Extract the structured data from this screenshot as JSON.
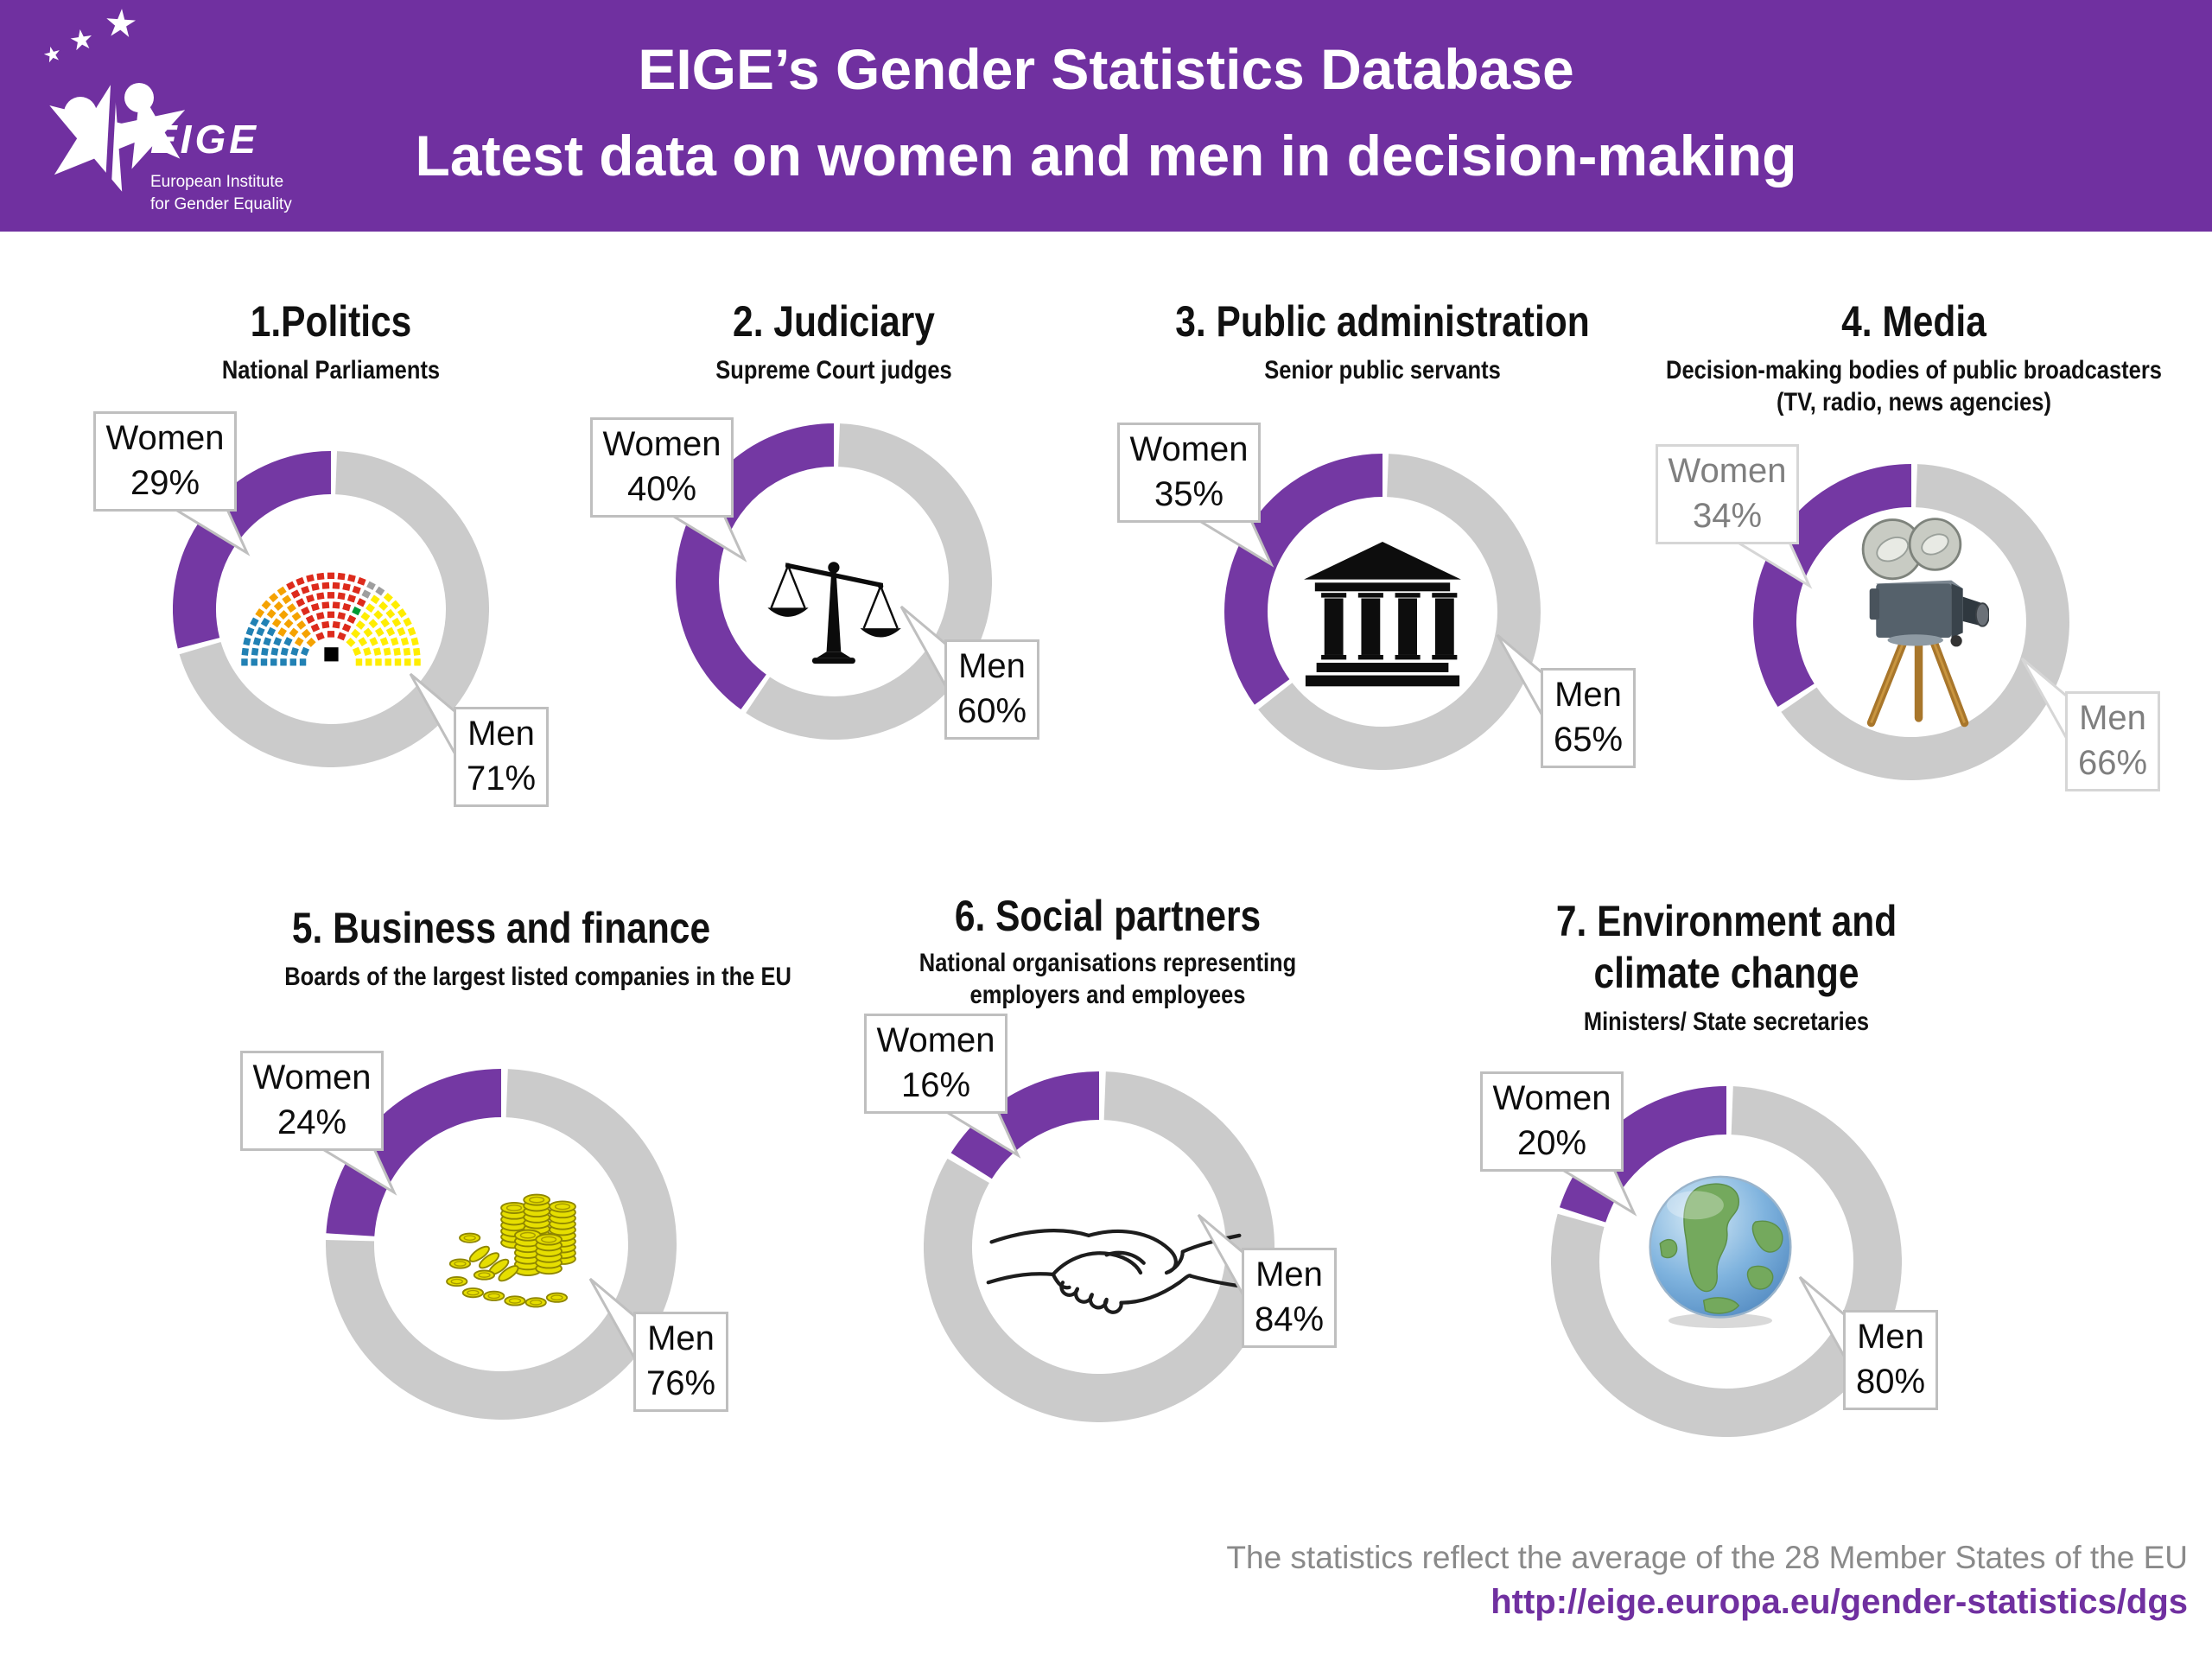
{
  "header": {
    "logo": {
      "acronym": "EIGE",
      "name_line1": "European Institute",
      "name_line2": "for Gender Equality"
    },
    "title_line1": "EIGE’s Gender Statistics Database",
    "title_line2": "Latest data on women and men in decision-making"
  },
  "colors": {
    "header_purple": "#7030A0",
    "donut_women_purple": "#7438A3",
    "donut_men_gray": "#CBCBCB",
    "callout_border_gray": "#BFBFBF",
    "media_callout_border": "#D6D6D6",
    "media_label_gray": "#7F7F7F",
    "footer_note_gray": "#8A8A8A",
    "url_purple": "#7030A0"
  },
  "chart_data": {
    "type": "donut",
    "unit": "%",
    "note": "Each donut shows share of women (purple, counter-clockwise from top) vs men (gray)",
    "charts": [
      {
        "title": "1.Politics",
        "subtitle": "National Parliaments",
        "women_label": "Women",
        "women_pct": 29,
        "women_value": "29%",
        "men_label": "Men",
        "men_pct": 71,
        "men_value": "71%",
        "icon": "parliament-seats-icon"
      },
      {
        "title": "2. Judiciary",
        "subtitle": "Supreme Court judges",
        "women_label": "Women",
        "women_pct": 40,
        "women_value": "40%",
        "men_label": "Men",
        "men_pct": 60,
        "men_value": "60%",
        "icon": "scales-of-justice-icon"
      },
      {
        "title": "3. Public administration",
        "subtitle": "Senior public servants",
        "women_label": "Women",
        "women_pct": 35,
        "women_value": "35%",
        "men_label": "Men",
        "men_pct": 65,
        "men_value": "65%",
        "icon": "government-building-icon"
      },
      {
        "title": "4. Media",
        "subtitle": "Decision-making bodies of public broadcasters (TV, radio, news agencies)",
        "women_label": "Women",
        "women_pct": 34,
        "women_value": "34%",
        "men_label": "Men",
        "men_pct": 66,
        "men_value": "66%",
        "icon": "movie-camera-icon",
        "label_color": "#7F7F7F",
        "border_color": "#D6D6D6"
      },
      {
        "title": "5. Business and finance",
        "subtitle": "Boards of the largest listed companies in the EU",
        "women_label": "Women",
        "women_pct": 24,
        "women_value": "24%",
        "men_label": "Men",
        "men_pct": 76,
        "men_value": "76%",
        "icon": "gold-coins-icon"
      },
      {
        "title": "6. Social partners",
        "subtitle": "National organisations representing employers and employees",
        "women_label": "Women",
        "women_pct": 16,
        "women_value": "16%",
        "men_label": "Men",
        "men_pct": 84,
        "men_value": "84%",
        "icon": "handshake-icon"
      },
      {
        "title": "7. Environment and climate change",
        "subtitle": "Ministers/ State secretaries",
        "women_label": "Women",
        "women_pct": 20,
        "women_value": "20%",
        "men_label": "Men",
        "men_pct": 80,
        "men_value": "80%",
        "icon": "earth-globe-icon"
      }
    ]
  },
  "footer": {
    "note": "The statistics reflect the average of the 28 Member States of the EU",
    "url": "http://eige.europa.eu/gender-statistics/dgs"
  }
}
